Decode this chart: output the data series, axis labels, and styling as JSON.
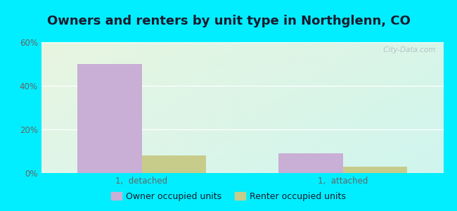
{
  "title": "Owners and renters by unit type in Northglenn, CO",
  "categories": [
    "1,  detached",
    "1,  attached"
  ],
  "owner_values": [
    50,
    9
  ],
  "renter_values": [
    8,
    3
  ],
  "owner_color": "#c9aed6",
  "renter_color": "#c8cc8a",
  "ylim": [
    0,
    60
  ],
  "yticks": [
    0,
    20,
    40,
    60
  ],
  "ytick_labels": [
    "0%",
    "20%",
    "40%",
    "60%"
  ],
  "bar_width": 0.32,
  "legend_owner": "Owner occupied units",
  "legend_renter": "Renter occupied units",
  "bg_top_left": "#e8f5e0",
  "bg_bottom_right": "#d0f5ee",
  "outer_bg": "#00eeff",
  "watermark": " City-Data.com",
  "title_fontsize": 13,
  "tick_fontsize": 8.5,
  "legend_fontsize": 9,
  "title_color": "#1a1a2e",
  "tick_color": "#666666",
  "legend_color": "#1a1a2e"
}
